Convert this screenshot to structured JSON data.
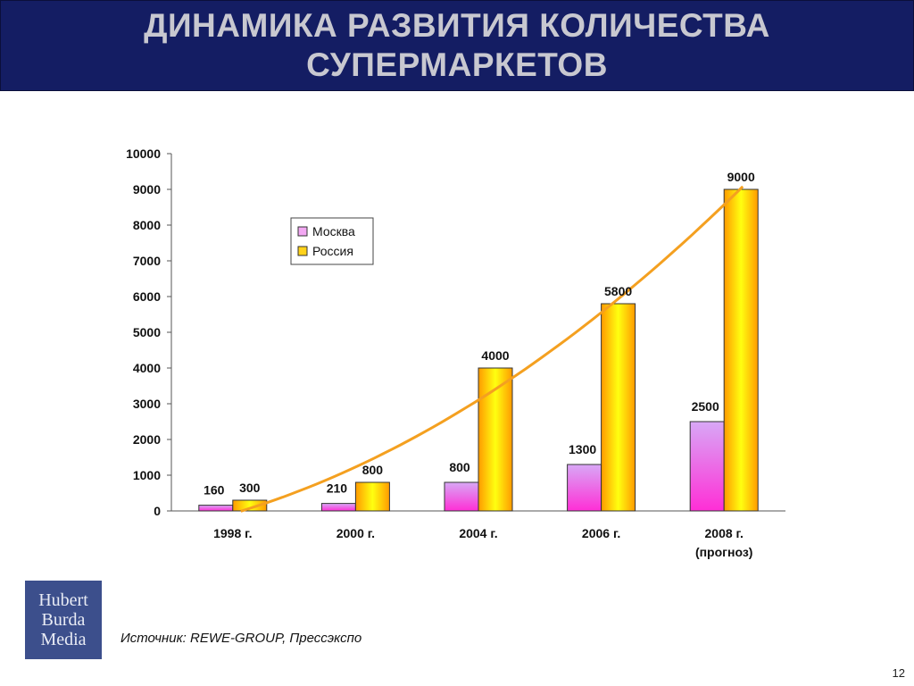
{
  "header": {
    "title_line1": "ДИНАМИКА РАЗВИТИЯ КОЛИЧЕСТВА",
    "title_line2": "СУПЕРМАРКЕТОВ"
  },
  "chart_data": {
    "type": "bar",
    "categories": [
      "1998 г.",
      "2000 г.",
      "2004 г.",
      "2006 г.",
      "2008 г.|(прогноз)"
    ],
    "series": [
      {
        "name": "Москва",
        "values": [
          160,
          210,
          800,
          1300,
          2500
        ],
        "color": "#f2a8f2"
      },
      {
        "name": "Россия",
        "values": [
          300,
          800,
          4000,
          5800,
          9000
        ],
        "color": "#ffd21a"
      }
    ],
    "data_labels": {
      "Москва": [
        "160",
        "210",
        "800",
        "1300",
        "2500"
      ],
      "Россия": [
        "300",
        "800",
        "4000",
        "5800",
        "9000"
      ]
    },
    "trendline": {
      "series": "Россия",
      "color": "#f4a020"
    },
    "ylim": [
      0,
      10000
    ],
    "yticks": [
      0,
      1000,
      2000,
      3000,
      4000,
      5000,
      6000,
      7000,
      8000,
      9000,
      10000
    ],
    "legend": "upper-left-center",
    "grid": false
  },
  "footer": {
    "logo_words": [
      "Hubert",
      "Burda",
      "Media"
    ],
    "source": "Источник: REWE-GROUP, Прессэкспо",
    "page_number": "12"
  },
  "colors": {
    "title_bg": "#141d63",
    "title_text": "#c8c8d0",
    "logo_bg": "#3c4f8c"
  }
}
